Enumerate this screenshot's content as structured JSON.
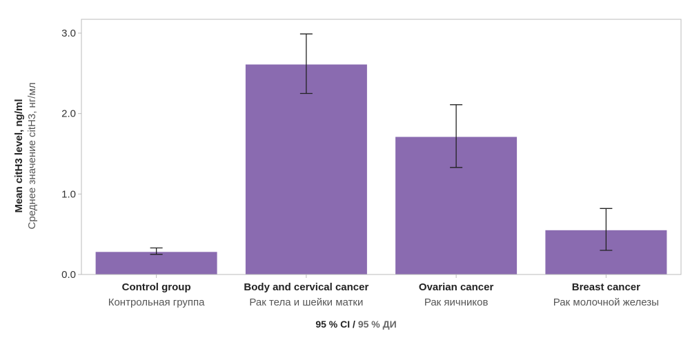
{
  "chart_data": {
    "type": "bar",
    "categories": [
      {
        "en": "Control group",
        "ru": "Контрольная группа"
      },
      {
        "en": "Body and cervical cancer",
        "ru": "Рак тела и шейки матки"
      },
      {
        "en": "Ovarian cancer",
        "ru": "Рак яичников"
      },
      {
        "en": "Breast cancer",
        "ru": "Рак молочной железы"
      }
    ],
    "values": [
      0.28,
      2.61,
      1.71,
      0.55
    ],
    "ci_low": [
      0.25,
      2.25,
      1.33,
      0.3
    ],
    "ci_high": [
      0.33,
      2.99,
      2.11,
      0.82
    ],
    "ylim": [
      0,
      3.2
    ],
    "yticks": [
      "0.0",
      "1.0",
      "2.0",
      "3.0"
    ],
    "ylabel_en": "Mean citH3 level, ng/ml",
    "ylabel_ru": "Среднее значение citH3, нг/мл",
    "xlabel_en": "95 % CI",
    "xlabel_sep": " / ",
    "xlabel_ru": "95 % ДИ",
    "bar_color": "#8a6bb0",
    "error_color": "#222222",
    "frame_color": "#bbbbbb",
    "xlabel_en_color": "#222222",
    "xlabel_ru_color": "#666666"
  }
}
